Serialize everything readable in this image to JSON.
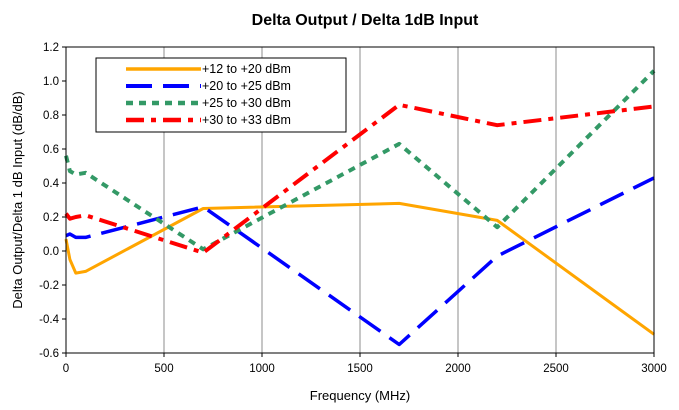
{
  "chart_data": {
    "type": "line",
    "title": "Delta Output / Delta 1dB Input",
    "xlabel": "Frequency (MHz)",
    "ylabel": "Delta Output/Delta 1 dB Input (dB/dB)",
    "xlim": [
      0,
      3000
    ],
    "ylim": [
      -0.6,
      1.2
    ],
    "x_ticks": [
      0,
      500,
      1000,
      1500,
      2000,
      2500,
      3000
    ],
    "y_ticks": [
      -0.6,
      -0.4,
      -0.2,
      0.0,
      0.2,
      0.4,
      0.6,
      0.8,
      1.0,
      1.2
    ],
    "x_tick_labels": [
      "0",
      "500",
      "1000",
      "1500",
      "2000",
      "2500",
      "3000"
    ],
    "y_tick_labels": [
      "-0.6",
      "-0.4",
      "-0.2",
      "0.0",
      "0.2",
      "0.4",
      "0.6",
      "0.8",
      "1.0",
      "1.2"
    ],
    "grid": "vertical",
    "legend": "top-left",
    "series": [
      {
        "name": "+12 to +20 dBm",
        "color": "#ffa500",
        "style": "solid",
        "points": [
          [
            0,
            0.07
          ],
          [
            20,
            -0.05
          ],
          [
            50,
            -0.13
          ],
          [
            100,
            -0.12
          ],
          [
            700,
            0.25
          ],
          [
            1700,
            0.28
          ],
          [
            2200,
            0.18
          ],
          [
            3000,
            -0.49
          ]
        ]
      },
      {
        "name": "+20 to +25 dBm",
        "color": "#0000ff",
        "style": "longdash",
        "points": [
          [
            0,
            0.09
          ],
          [
            20,
            0.1
          ],
          [
            50,
            0.08
          ],
          [
            100,
            0.08
          ],
          [
            700,
            0.26
          ],
          [
            1700,
            -0.55
          ],
          [
            2200,
            -0.03
          ],
          [
            3000,
            0.43
          ]
        ]
      },
      {
        "name": "+25 to +30 dBm",
        "color": "#339966",
        "style": "shortdash",
        "points": [
          [
            0,
            0.56
          ],
          [
            20,
            0.47
          ],
          [
            50,
            0.45
          ],
          [
            100,
            0.46
          ],
          [
            700,
            0.01
          ],
          [
            1700,
            0.63
          ],
          [
            2200,
            0.14
          ],
          [
            3000,
            1.06
          ]
        ]
      },
      {
        "name": "+30 to +33 dBm",
        "color": "#ff0000",
        "style": "dashdot",
        "points": [
          [
            0,
            0.22
          ],
          [
            20,
            0.19
          ],
          [
            50,
            0.2
          ],
          [
            100,
            0.21
          ],
          [
            700,
            -0.01
          ],
          [
            1700,
            0.86
          ],
          [
            2200,
            0.74
          ],
          [
            3000,
            0.85
          ]
        ]
      }
    ]
  }
}
